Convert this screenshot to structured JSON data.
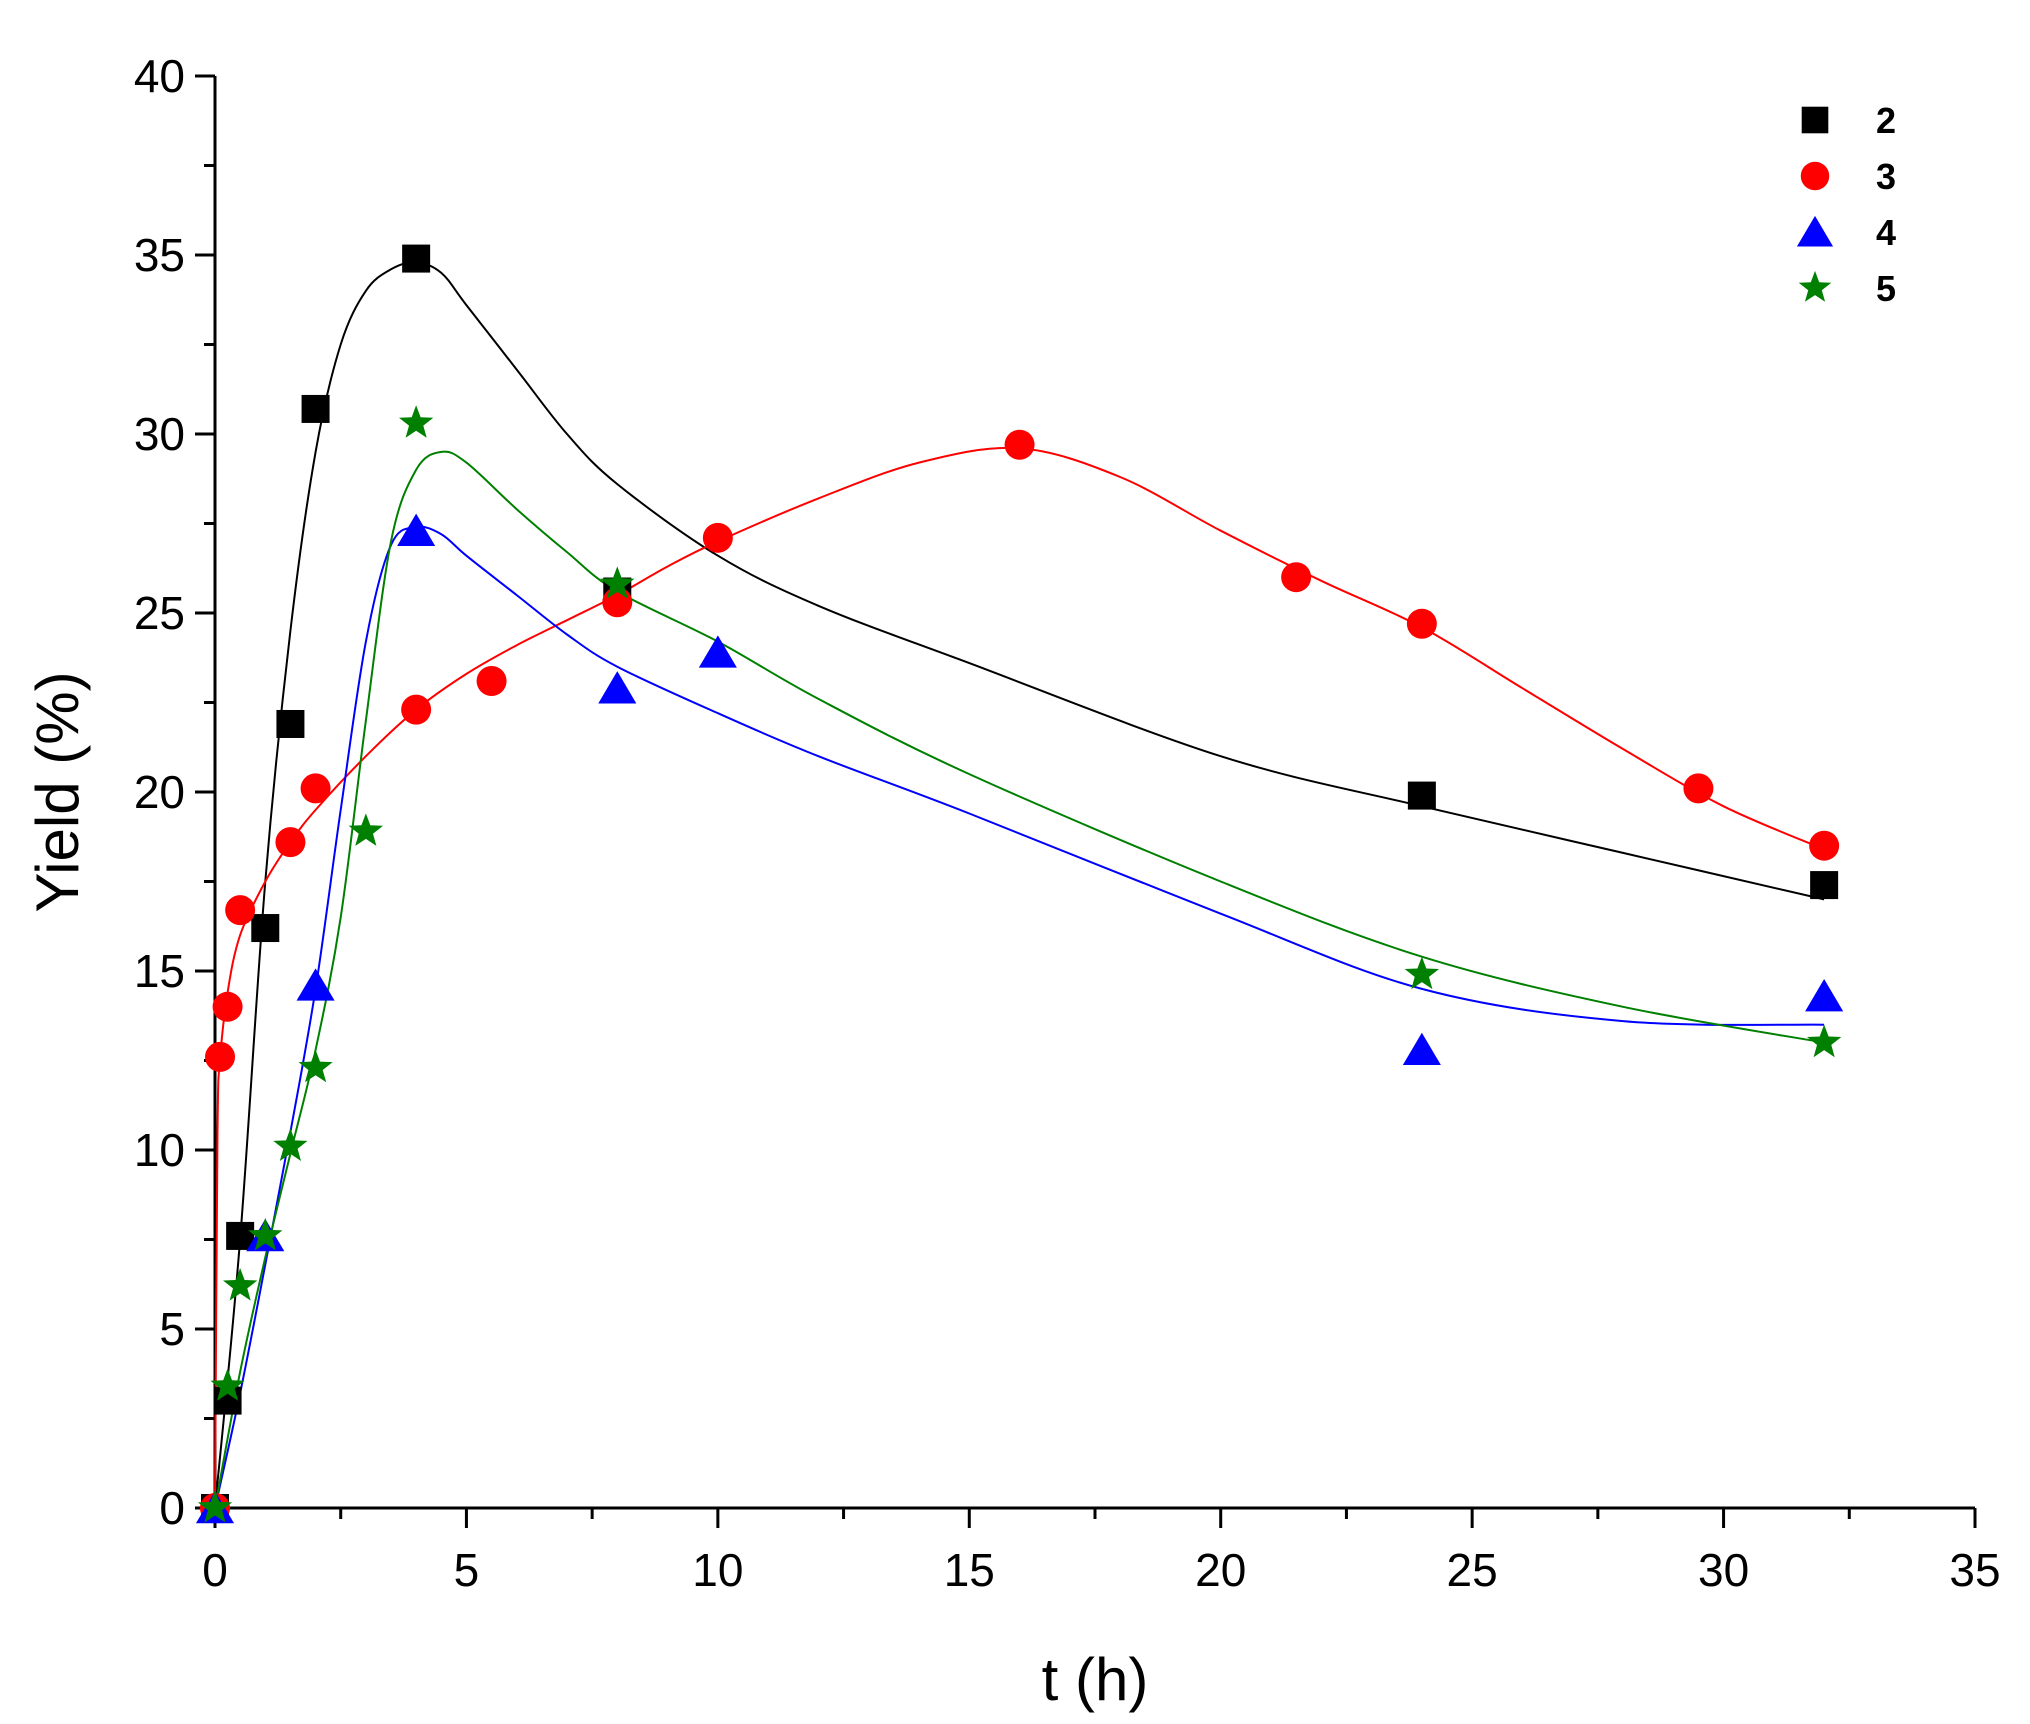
{
  "chart_data": {
    "type": "scatter",
    "title": "",
    "xlabel": "t (h)",
    "ylabel": "Yield (%)",
    "xlim": [
      0,
      35
    ],
    "ylim": [
      0,
      40
    ],
    "xticks": [
      0,
      5,
      10,
      15,
      20,
      25,
      30,
      35
    ],
    "yticks": [
      0,
      5,
      10,
      15,
      20,
      25,
      30,
      35,
      40
    ],
    "grid": false,
    "legend_position": "top-right",
    "series": [
      {
        "name": "2",
        "color": "#000000",
        "marker": "square",
        "points": [
          [
            0,
            0
          ],
          [
            0.25,
            3.0
          ],
          [
            0.5,
            7.6
          ],
          [
            1,
            16.2
          ],
          [
            1.5,
            21.9
          ],
          [
            2,
            30.7
          ],
          [
            4,
            34.9
          ],
          [
            8,
            25.6
          ],
          [
            24,
            19.9
          ],
          [
            32,
            17.4
          ]
        ],
        "fit": [
          [
            0,
            0
          ],
          [
            0.5,
            7.5
          ],
          [
            1,
            17.5
          ],
          [
            1.5,
            24.5
          ],
          [
            2,
            29.5
          ],
          [
            2.5,
            32.5
          ],
          [
            3,
            34.0
          ],
          [
            3.5,
            34.6
          ],
          [
            4,
            34.8
          ],
          [
            4.5,
            34.5
          ],
          [
            5,
            33.6
          ],
          [
            6,
            31.8
          ],
          [
            7,
            30.0
          ],
          [
            8,
            28.6
          ],
          [
            10,
            26.6
          ],
          [
            12,
            25.2
          ],
          [
            15,
            23.6
          ],
          [
            20,
            21.0
          ],
          [
            24,
            19.6
          ],
          [
            28,
            18.3
          ],
          [
            32,
            17.0
          ]
        ]
      },
      {
        "name": "3",
        "color": "#ff0000",
        "marker": "circle",
        "points": [
          [
            0,
            0
          ],
          [
            0.1,
            12.6
          ],
          [
            0.25,
            14.0
          ],
          [
            0.5,
            16.7
          ],
          [
            1.5,
            18.6
          ],
          [
            2,
            20.1
          ],
          [
            4,
            22.3
          ],
          [
            5.5,
            23.1
          ],
          [
            8,
            25.3
          ],
          [
            10,
            27.1
          ],
          [
            16,
            29.7
          ],
          [
            21.5,
            26.0
          ],
          [
            24,
            24.7
          ],
          [
            29.5,
            20.1
          ],
          [
            32,
            18.5
          ]
        ],
        "fit": [
          [
            0,
            0
          ],
          [
            0.05,
            10.5
          ],
          [
            0.1,
            12.5
          ],
          [
            0.25,
            14.4
          ],
          [
            0.5,
            16.0
          ],
          [
            1,
            17.5
          ],
          [
            1.5,
            18.6
          ],
          [
            2,
            19.5
          ],
          [
            3,
            21.0
          ],
          [
            4,
            22.3
          ],
          [
            5,
            23.3
          ],
          [
            6,
            24.1
          ],
          [
            7,
            24.8
          ],
          [
            8,
            25.5
          ],
          [
            9,
            26.3
          ],
          [
            10,
            27.0
          ],
          [
            12,
            28.2
          ],
          [
            14,
            29.2
          ],
          [
            16,
            29.6
          ],
          [
            18,
            28.8
          ],
          [
            20,
            27.3
          ],
          [
            22,
            25.9
          ],
          [
            24,
            24.6
          ],
          [
            26,
            22.9
          ],
          [
            28,
            21.2
          ],
          [
            30,
            19.6
          ],
          [
            32,
            18.4
          ]
        ]
      },
      {
        "name": "4",
        "color": "#0000ff",
        "marker": "triangle",
        "points": [
          [
            0,
            0
          ],
          [
            1,
            7.6
          ],
          [
            2,
            14.6
          ],
          [
            4,
            27.3
          ],
          [
            8,
            22.9
          ],
          [
            10,
            23.9
          ],
          [
            24,
            12.8
          ],
          [
            32,
            14.3
          ]
        ],
        "fit": [
          [
            0,
            0
          ],
          [
            0.5,
            3.2
          ],
          [
            1,
            6.8
          ],
          [
            1.5,
            10.5
          ],
          [
            2,
            14.5
          ],
          [
            2.5,
            19.5
          ],
          [
            3,
            24.2
          ],
          [
            3.5,
            26.9
          ],
          [
            4,
            27.4
          ],
          [
            4.5,
            27.2
          ],
          [
            5,
            26.6
          ],
          [
            6,
            25.5
          ],
          [
            7,
            24.4
          ],
          [
            8,
            23.5
          ],
          [
            10,
            22.2
          ],
          [
            12,
            21.0
          ],
          [
            15,
            19.4
          ],
          [
            20,
            16.6
          ],
          [
            24,
            14.5
          ],
          [
            28,
            13.6
          ],
          [
            32,
            13.5
          ]
        ]
      },
      {
        "name": "5",
        "color": "#008000",
        "marker": "star",
        "points": [
          [
            0,
            0
          ],
          [
            0.25,
            3.4
          ],
          [
            0.5,
            6.2
          ],
          [
            1,
            7.6
          ],
          [
            1.5,
            10.1
          ],
          [
            2,
            12.3
          ],
          [
            3,
            18.9
          ],
          [
            4,
            30.3
          ],
          [
            8,
            25.8
          ],
          [
            24,
            14.9
          ],
          [
            32,
            13.0
          ]
        ],
        "fit": [
          [
            0,
            0
          ],
          [
            0.5,
            3.8
          ],
          [
            1,
            7.0
          ],
          [
            1.5,
            9.9
          ],
          [
            2,
            12.8
          ],
          [
            2.5,
            16.5
          ],
          [
            3,
            22.0
          ],
          [
            3.5,
            27.0
          ],
          [
            4,
            29.0
          ],
          [
            4.5,
            29.5
          ],
          [
            5,
            29.2
          ],
          [
            6,
            27.9
          ],
          [
            7,
            26.7
          ],
          [
            8,
            25.6
          ],
          [
            10,
            24.2
          ],
          [
            12,
            22.6
          ],
          [
            15,
            20.5
          ],
          [
            20,
            17.5
          ],
          [
            24,
            15.4
          ],
          [
            28,
            14.0
          ],
          [
            32,
            13.0
          ]
        ]
      }
    ]
  }
}
